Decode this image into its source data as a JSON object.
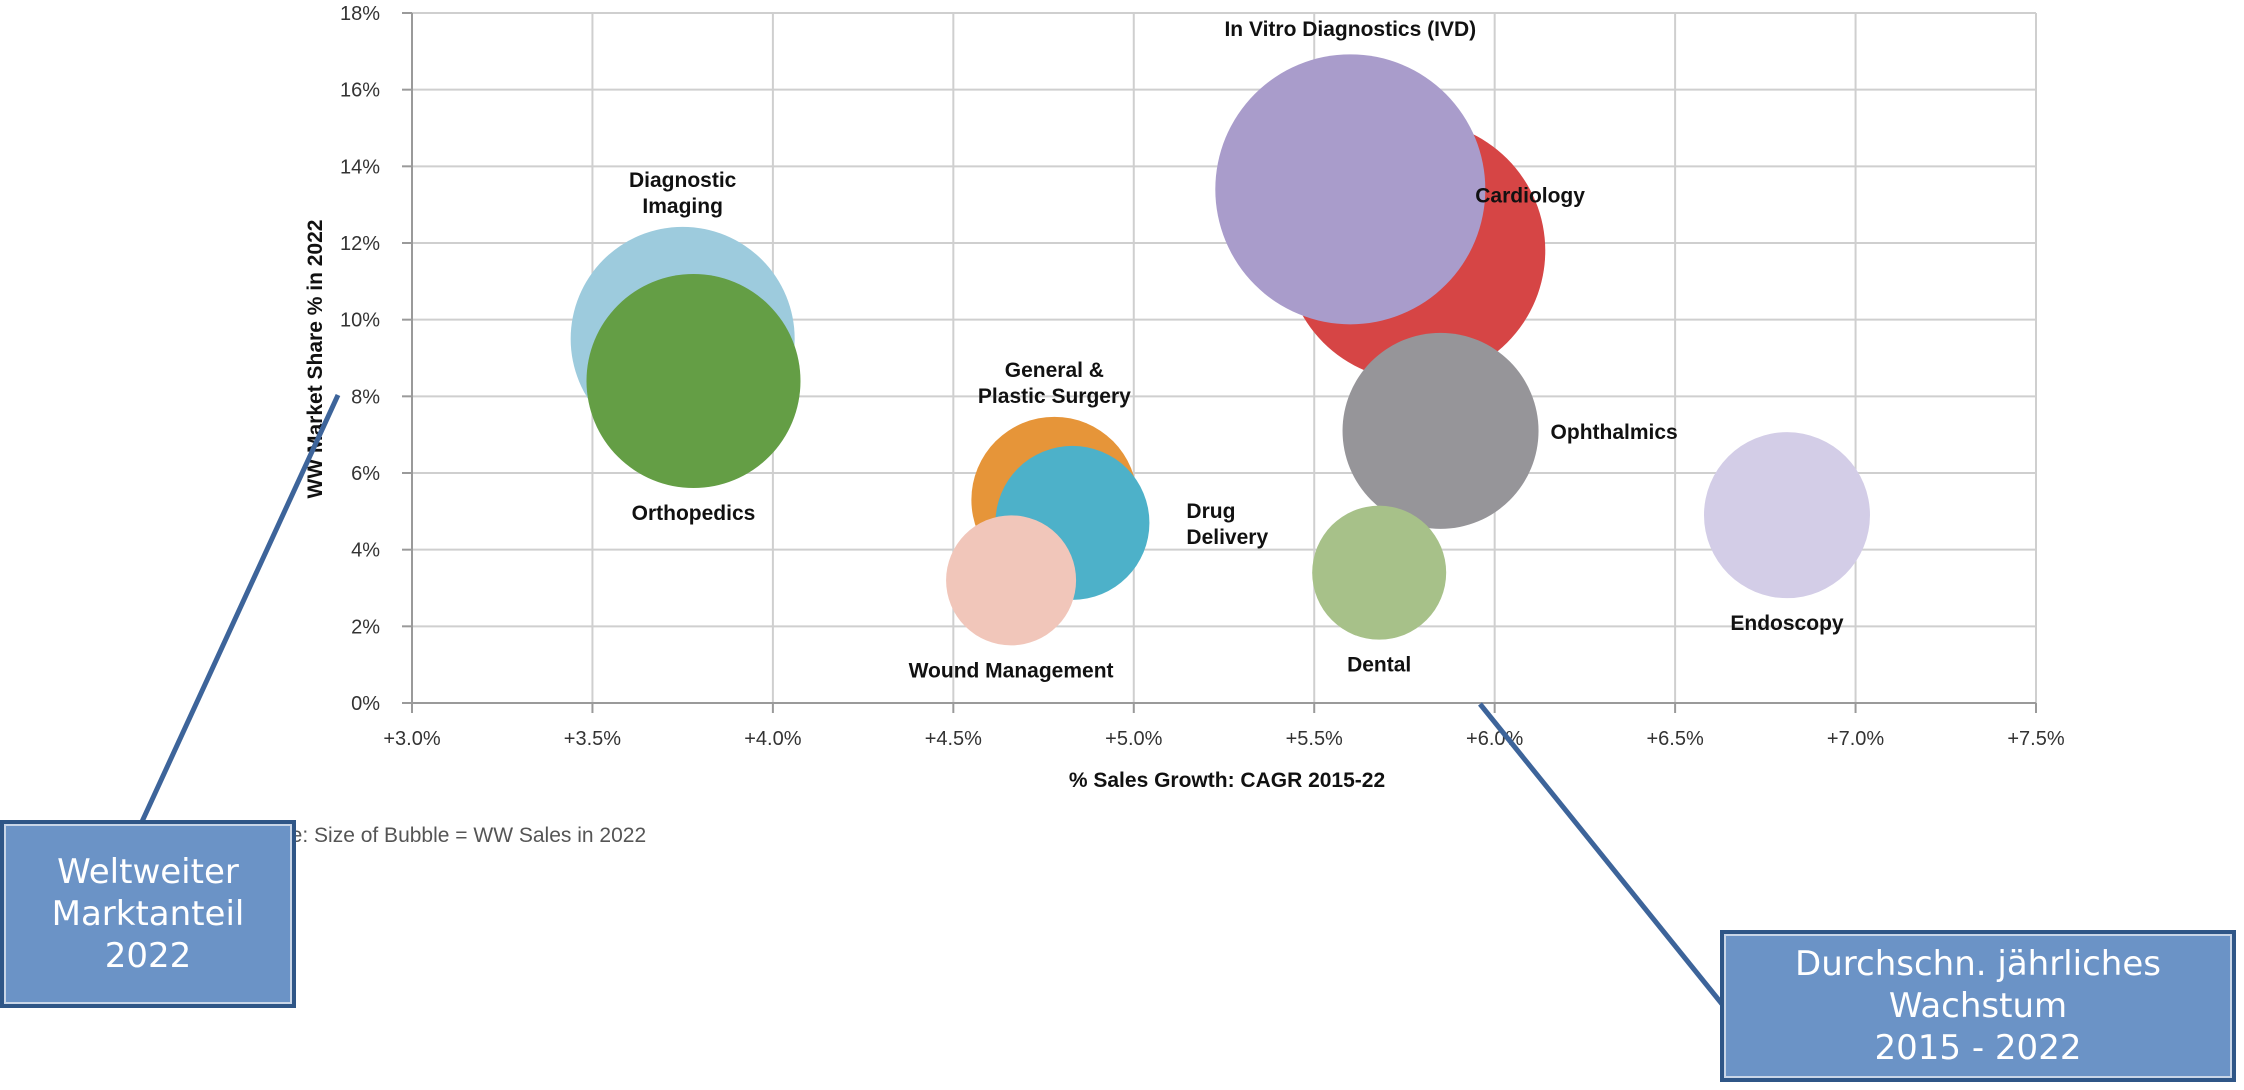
{
  "chart_data": {
    "type": "bubble",
    "title": "",
    "xlabel": "% Sales Growth: CAGR 2015-22",
    "ylabel": "WW Market Share % in 2022",
    "xlim": [
      3.0,
      7.5
    ],
    "ylim": [
      0,
      18
    ],
    "x_ticks": [
      "+3.0%",
      "+3.5%",
      "+4.0%",
      "+4.5%",
      "+5.0%",
      "+5.5%",
      "+6.0%",
      "+6.5%",
      "+7.0%",
      "+7.5%"
    ],
    "y_ticks": [
      "0%",
      "2%",
      "4%",
      "6%",
      "8%",
      "10%",
      "12%",
      "14%",
      "16%",
      "18%"
    ],
    "grid": true,
    "note": "Note: Size of Bubble = WW Sales in 2022",
    "bubbles": [
      {
        "label": "Cardiology",
        "x": 5.78,
        "y": 11.8,
        "size": 130,
        "color": "#d64545"
      },
      {
        "label": "In Vitro Diagnostics (IVD)",
        "x": 5.6,
        "y": 13.4,
        "size": 135,
        "color": "#a99ccb"
      },
      {
        "label": "Diagnostic\nImaging",
        "x": 3.75,
        "y": 9.5,
        "size": 112,
        "color": "#9dcbdd"
      },
      {
        "label": "Orthopedics",
        "x": 3.78,
        "y": 8.4,
        "size": 107,
        "color": "#649e45"
      },
      {
        "label": "General &\nPlastic Surgery",
        "x": 4.78,
        "y": 5.3,
        "size": 83,
        "color": "#e69539"
      },
      {
        "label": "Drug\nDelivery",
        "x": 4.83,
        "y": 4.7,
        "size": 77,
        "color": "#4db1c9"
      },
      {
        "label": "Wound Management",
        "x": 4.66,
        "y": 3.2,
        "size": 65,
        "color": "#f1c6ba"
      },
      {
        "label": "Ophthalmics",
        "x": 5.85,
        "y": 7.1,
        "size": 98,
        "color": "#969599"
      },
      {
        "label": "Dental",
        "x": 5.68,
        "y": 3.4,
        "size": 67,
        "color": "#a7c189"
      },
      {
        "label": "Endoscopy",
        "x": 6.81,
        "y": 4.9,
        "size": 83,
        "color": "#d3cde7"
      }
    ]
  },
  "callouts": {
    "left": "Weltweiter\nMarktanteil\n2022",
    "right": "Durchschn. jährliches\nWachstum\n2015 - 2022"
  }
}
